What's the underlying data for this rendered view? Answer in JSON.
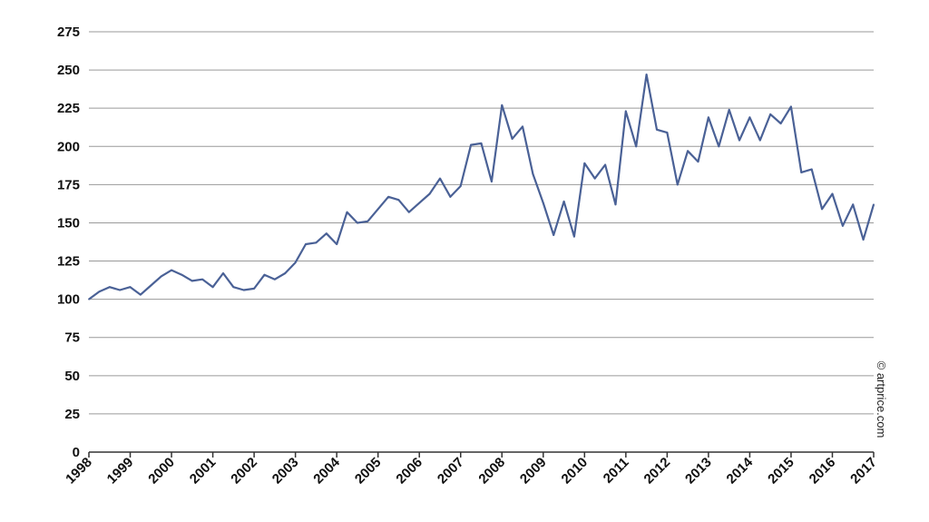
{
  "chart_data": {
    "type": "line",
    "title": "",
    "xlabel": "",
    "ylabel": "",
    "ylim": [
      0,
      275
    ],
    "yticks": [
      0,
      25,
      50,
      75,
      100,
      125,
      150,
      175,
      200,
      225,
      250,
      275
    ],
    "xlim": [
      1998,
      2017
    ],
    "xticks": [
      "1998",
      "1999",
      "2000",
      "2001",
      "2002",
      "2003",
      "2004",
      "2005",
      "2006",
      "2007",
      "2008",
      "2009",
      "2010",
      "2011",
      "2012",
      "2013",
      "2014",
      "2015",
      "2016",
      "2017"
    ],
    "grid": "horizontal",
    "line_color": "#4a6196",
    "series": [
      {
        "x": [
          1998.0,
          1998.25,
          1998.5,
          1998.75,
          1999.0,
          1999.25,
          1999.5,
          1999.75,
          2000.0,
          2000.25,
          2000.5,
          2000.75,
          2001.0,
          2001.25,
          2001.5,
          2001.75,
          2002.0,
          2002.25,
          2002.5,
          2002.75,
          2003.0,
          2003.25,
          2003.5,
          2003.75,
          2004.0,
          2004.25,
          2004.5,
          2004.75,
          2005.0,
          2005.25,
          2005.5,
          2005.75,
          2006.0,
          2006.25,
          2006.5,
          2006.75,
          2007.0,
          2007.25,
          2007.5,
          2007.75,
          2008.0,
          2008.25,
          2008.5,
          2008.75,
          2009.0,
          2009.25,
          2009.5,
          2009.75,
          2010.0,
          2010.25,
          2010.5,
          2010.75,
          2011.0,
          2011.25,
          2011.5,
          2011.75,
          2012.0,
          2012.25,
          2012.5,
          2012.75,
          2013.0,
          2013.25,
          2013.5,
          2013.75,
          2014.0,
          2014.25,
          2014.5,
          2014.75,
          2015.0,
          2015.25,
          2015.5,
          2015.75,
          2016.0,
          2016.25,
          2016.5,
          2016.75,
          2017.0
        ],
        "values": [
          100,
          105,
          108,
          106,
          108,
          103,
          109,
          115,
          119,
          116,
          112,
          113,
          108,
          117,
          108,
          106,
          107,
          116,
          113,
          117,
          124,
          136,
          137,
          143,
          136,
          157,
          150,
          151,
          159,
          167,
          165,
          157,
          163,
          169,
          179,
          167,
          174,
          201,
          202,
          177,
          227,
          205,
          213,
          182,
          163,
          142,
          164,
          141,
          189,
          179,
          188,
          162,
          223,
          200,
          247,
          211,
          209,
          175,
          197,
          190,
          219,
          200,
          224,
          204,
          219,
          204,
          221,
          215,
          226,
          183,
          185,
          159,
          169,
          148,
          162,
          139,
          162
        ]
      }
    ],
    "annotation": "© artprice.com"
  }
}
